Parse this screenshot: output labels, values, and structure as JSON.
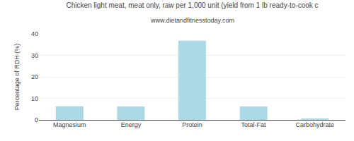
{
  "chart_data": {
    "type": "bar",
    "title": "Chicken light meat, meat only, raw per 1,000 unit (yield from 1 lb ready-to-cook c",
    "subtitle": "www.dietandfitnesstoday.com",
    "categories": [
      "Magnesium",
      "Energy",
      "Protein",
      "Total-Fat",
      "Carbohydrate"
    ],
    "values": [
      6.3,
      6.2,
      36.8,
      6.2,
      0.4
    ],
    "color": "#add8e6",
    "ylabel": "Percentage of RDH (%)",
    "ylim": [
      0,
      40
    ],
    "yticks": [
      0,
      10,
      20,
      30,
      40
    ],
    "grid": true
  }
}
